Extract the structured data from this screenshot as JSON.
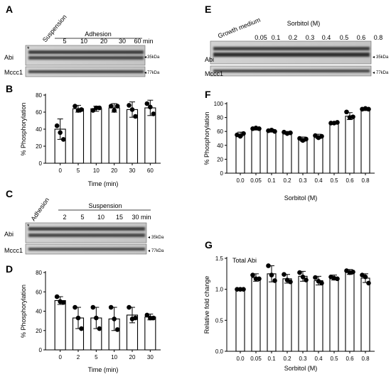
{
  "panels": {
    "A": {
      "label": "A",
      "header": "Adhesion",
      "lanes": [
        "Suspension",
        "5",
        "10",
        "20",
        "30",
        "60 min"
      ],
      "bands": [
        "Abi",
        "Mccc1"
      ],
      "markers": [
        "35kDa",
        "77kDa"
      ],
      "asterisk": "*"
    },
    "C": {
      "label": "C",
      "header": "Suspension",
      "lanes": [
        "Adhesion",
        "2",
        "5",
        "10",
        "15",
        "30 min"
      ],
      "bands": [
        "Abi",
        "Mccc1"
      ],
      "markers": [
        "35kDa",
        "77kDa"
      ],
      "asterisk": "*"
    },
    "E": {
      "label": "E",
      "header": "Sorbitol (M)",
      "lanes": [
        "Growth medium",
        "0.05",
        "0.1",
        "0.2",
        "0.3",
        "0.4",
        "0.5",
        "0.6",
        "0.8"
      ],
      "bands": [
        "Abi",
        "Mccc1"
      ],
      "markers": [
        "35kDa",
        "77kDa"
      ]
    }
  },
  "chart_data": [
    {
      "panel": "B",
      "type": "bar",
      "label": "B",
      "title": "",
      "categories": [
        "0",
        "5",
        "10",
        "20",
        "30",
        "60"
      ],
      "values": [
        40,
        64,
        64,
        65,
        63,
        65
      ],
      "errors": [
        12,
        4,
        3,
        5,
        9,
        9
      ],
      "points": [
        [
          44,
          36,
          28
        ],
        [
          67,
          62,
          63
        ],
        [
          62,
          65,
          65
        ],
        [
          67,
          62,
          67
        ],
        [
          68,
          63,
          55
        ],
        [
          70,
          66,
          58
        ]
      ],
      "xlabel": "Time (min)",
      "ylabel": "% Phosphorylation",
      "ylim": [
        0,
        80
      ],
      "yticks": [
        0,
        20,
        40,
        60,
        80
      ]
    },
    {
      "panel": "D",
      "type": "bar",
      "label": "D",
      "title": "",
      "categories": [
        "0",
        "2",
        "5",
        "10",
        "20",
        "30"
      ],
      "values": [
        51,
        33,
        33,
        32,
        36,
        34
      ],
      "errors": [
        4,
        11,
        11,
        12,
        8,
        3
      ],
      "points": [
        [
          55,
          50,
          49
        ],
        [
          44,
          33,
          22
        ],
        [
          44,
          33,
          22
        ],
        [
          44,
          32,
          21
        ],
        [
          44,
          32,
          33
        ],
        [
          36,
          33,
          33
        ]
      ],
      "xlabel": "Time (min)",
      "ylabel": "% Phosphorylation",
      "ylim": [
        0,
        80
      ],
      "yticks": [
        0,
        20,
        40,
        60,
        80
      ]
    },
    {
      "panel": "F",
      "type": "bar",
      "label": "F",
      "title": "",
      "categories": [
        "0.0",
        "0.05",
        "0.1",
        "0.2",
        "0.3",
        "0.4",
        "0.5",
        "0.6",
        "0.8"
      ],
      "values": [
        56,
        64,
        61,
        58,
        49,
        53,
        72,
        82,
        92
      ],
      "errors": [
        3,
        2,
        2,
        2,
        3,
        3,
        1,
        5,
        2
      ],
      "points": [
        [
          55,
          53,
          57
        ],
        [
          64,
          65,
          64
        ],
        [
          61,
          62,
          60
        ],
        [
          59,
          57,
          58
        ],
        [
          50,
          47,
          49
        ],
        [
          54,
          51,
          53
        ],
        [
          72,
          72,
          73
        ],
        [
          88,
          80,
          81
        ],
        [
          92,
          93,
          92
        ]
      ],
      "xlabel": "Sorbitol (M)",
      "ylabel": "% Phosphorylation",
      "ylim": [
        0,
        100
      ],
      "yticks": [
        0,
        20,
        40,
        60,
        80,
        100
      ]
    },
    {
      "panel": "G",
      "type": "bar",
      "label": "G",
      "title": "Total Abi",
      "categories": [
        "0.0",
        "0.05",
        "0.1",
        "0.2",
        "0.3",
        "0.4",
        "0.5",
        "0.6",
        "0.8"
      ],
      "values": [
        1.0,
        1.19,
        1.25,
        1.17,
        1.21,
        1.14,
        1.19,
        1.28,
        1.18
      ],
      "errors": [
        0,
        0.06,
        0.13,
        0.07,
        0.08,
        0.07,
        0.04,
        0.04,
        0.07
      ],
      "points": [
        [
          1.0,
          1.0,
          1.0
        ],
        [
          1.23,
          1.17,
          1.17
        ],
        [
          1.38,
          1.23,
          1.14
        ],
        [
          1.24,
          1.15,
          1.12
        ],
        [
          1.27,
          1.2,
          1.15
        ],
        [
          1.19,
          1.13,
          1.1
        ],
        [
          1.2,
          1.18,
          1.17
        ],
        [
          1.3,
          1.27,
          1.28
        ],
        [
          1.23,
          1.2,
          1.1
        ]
      ],
      "xlabel": "Sorbitol (M)",
      "ylabel": "Relative fold change",
      "ylim": [
        0,
        1.5
      ],
      "yticks": [
        "0.0",
        "0.5",
        "1.0",
        "1.5"
      ]
    }
  ]
}
